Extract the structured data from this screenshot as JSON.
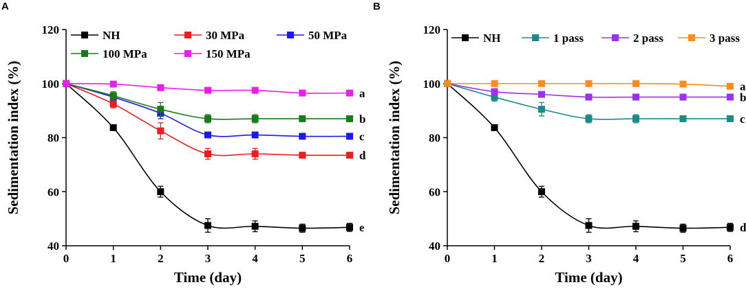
{
  "chart_data": [
    {
      "panel": "A",
      "type": "line",
      "title": "",
      "xlabel": "Time (day)",
      "ylabel": "Sedimentation index (%)",
      "x": [
        0,
        1,
        2,
        3,
        4,
        5,
        6
      ],
      "xlim": [
        0,
        6
      ],
      "ylim": [
        40,
        120
      ],
      "xticks": [
        "0",
        "1",
        "2",
        "3",
        "4",
        "5",
        "6"
      ],
      "yticks": [
        "40",
        "60",
        "80",
        "100",
        "120"
      ],
      "grid": false,
      "legend_position": "top",
      "series": [
        {
          "name": "NH",
          "color": "#000000",
          "values": [
            100,
            83.7,
            60,
            47.5,
            47.2,
            46.5,
            46.8
          ],
          "errors": [
            0,
            1,
            2,
            2.5,
            2,
            1.5,
            1.5
          ],
          "label": "e"
        },
        {
          "name": "30 MPa",
          "color": "#ee1c1c",
          "values": [
            100,
            92.5,
            82.5,
            74,
            74,
            73.5,
            73.5
          ],
          "errors": [
            0,
            1.5,
            3,
            2,
            2,
            1,
            1
          ],
          "label": "d"
        },
        {
          "name": "50 MPa",
          "color": "#1a1aee",
          "values": [
            100,
            95,
            89,
            81,
            81,
            80.5,
            80.5
          ],
          "errors": [
            0,
            1,
            2,
            1,
            1,
            1,
            1
          ],
          "label": "c"
        },
        {
          "name": "100 MPa",
          "color": "#1a7a1a",
          "values": [
            100,
            95.5,
            90.5,
            87,
            87,
            87,
            87
          ],
          "errors": [
            0,
            1.5,
            2.5,
            1.5,
            1.5,
            1,
            1
          ],
          "label": "b"
        },
        {
          "name": "150 MPa",
          "color": "#ee1cee",
          "values": [
            100,
            99.8,
            98.5,
            97.5,
            97.5,
            96.5,
            96.5
          ],
          "errors": [
            0,
            0.5,
            0.5,
            0.5,
            0.5,
            1,
            0.5
          ],
          "label": "a"
        }
      ]
    },
    {
      "panel": "B",
      "type": "line",
      "title": "",
      "xlabel": "Time (day)",
      "ylabel": "Sedimentation index (%)",
      "x": [
        0,
        1,
        2,
        3,
        4,
        5,
        6
      ],
      "xlim": [
        0,
        6
      ],
      "ylim": [
        40,
        120
      ],
      "xticks": [
        "0",
        "1",
        "2",
        "3",
        "4",
        "5",
        "6"
      ],
      "yticks": [
        "40",
        "60",
        "80",
        "100",
        "120"
      ],
      "grid": false,
      "legend_position": "top",
      "series": [
        {
          "name": "NH",
          "color": "#000000",
          "values": [
            100,
            83.7,
            60,
            47.5,
            47.2,
            46.5,
            46.8
          ],
          "errors": [
            0,
            1,
            2,
            2.5,
            2,
            1.5,
            1.5
          ],
          "label": "d"
        },
        {
          "name": "1 pass",
          "color": "#1a8a8a",
          "values": [
            100,
            95,
            90.5,
            87,
            87,
            87,
            87
          ],
          "errors": [
            0,
            1.5,
            2.5,
            1.5,
            1.5,
            1,
            1
          ],
          "label": "c"
        },
        {
          "name": "2 pass",
          "color": "#9b30ee",
          "values": [
            100,
            97,
            96,
            95,
            95,
            95,
            95
          ],
          "errors": [
            0,
            1,
            0.8,
            0.5,
            0.5,
            0.5,
            0.5
          ],
          "label": "b"
        },
        {
          "name": "3 pass",
          "color": "#ff8c1a",
          "values": [
            100,
            100,
            100,
            100,
            100,
            99.8,
            99
          ],
          "errors": [
            0,
            0.3,
            0.3,
            0.3,
            0.3,
            0.3,
            0.3
          ],
          "label": "a"
        }
      ]
    }
  ]
}
